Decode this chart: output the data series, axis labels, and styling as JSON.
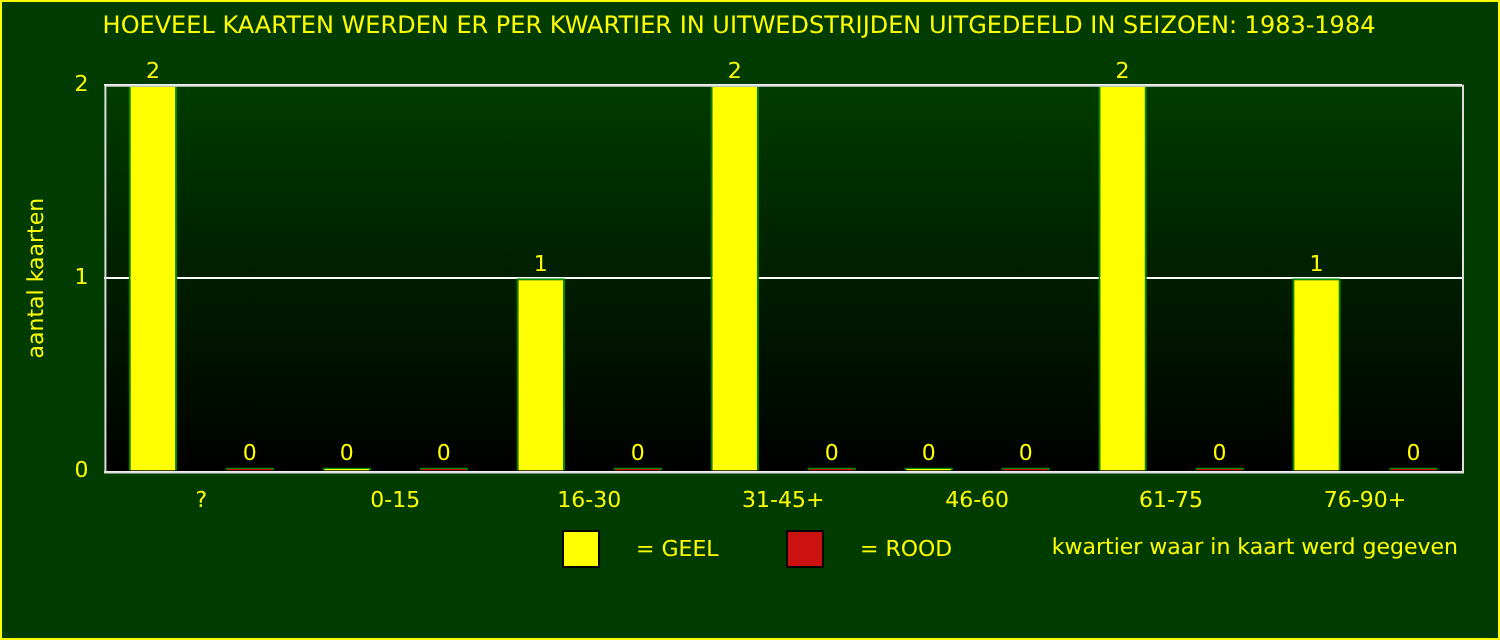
{
  "chart_data": {
    "type": "bar",
    "title": "HOEVEEL KAARTEN WERDEN ER PER KWARTIER IN UITWEDSTRIJDEN UITGEDEELD IN SEIZOEN: 1983-1984",
    "categories": [
      "?",
      "0-15",
      "16-30",
      "31-45+",
      "46-60",
      "61-75",
      "76-90+"
    ],
    "series": [
      {
        "name": "= GEEL",
        "color": "#ffff00",
        "values": [
          2,
          0,
          1,
          2,
          0,
          2,
          1
        ]
      },
      {
        "name": "= ROOD",
        "color": "#cc1111",
        "values": [
          0,
          0,
          0,
          0,
          0,
          0,
          0
        ]
      }
    ],
    "xlabel": "kwartier waar in kaart werd gegeven",
    "ylabel": "aantal kaarten",
    "ylim": [
      0,
      2
    ],
    "yticks": [
      0,
      1,
      2
    ],
    "grid": "y",
    "legend": "bottom",
    "data_labels": true
  }
}
